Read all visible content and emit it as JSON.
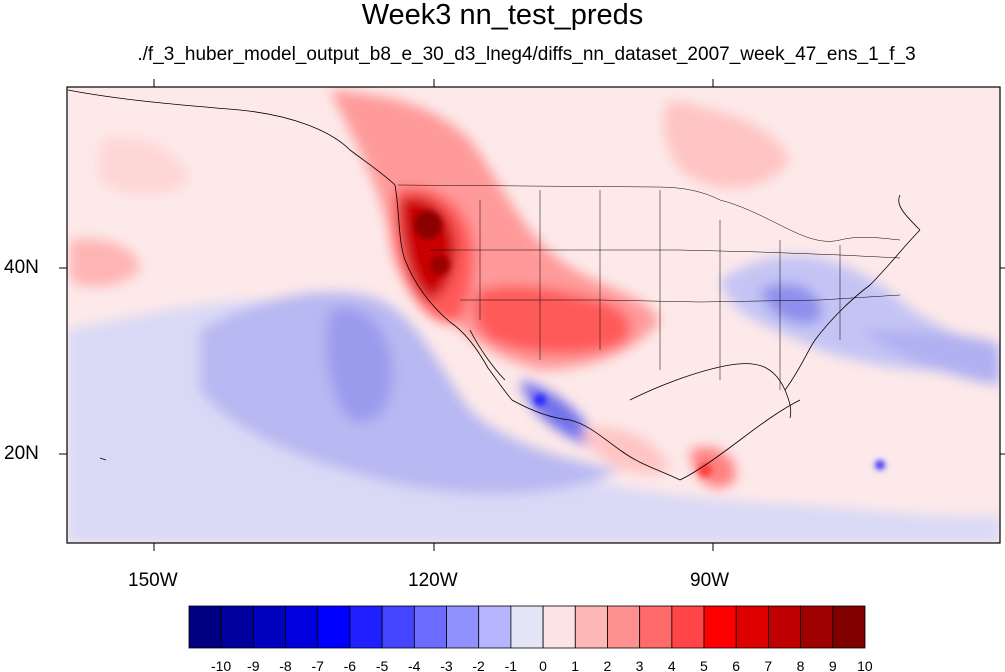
{
  "title": "Week3 nn_test_preds",
  "subtitle": "./f_3_huber_model_output_b8_e_30_d3_lneg4/diffs_nn_dataset_2007_week_47_ens_1_f_3",
  "map": {
    "lat_ticks": [
      "40N",
      "20N"
    ],
    "lon_ticks": [
      "150W",
      "120W",
      "90W"
    ]
  },
  "colorbar": {
    "labels": [
      "-10",
      "-9",
      "-8",
      "-7",
      "-6",
      "-5",
      "-4",
      "-3",
      "-2",
      "-1",
      "0",
      "1",
      "2",
      "3",
      "4",
      "5",
      "6",
      "7",
      "8",
      "9",
      "10"
    ],
    "colors": [
      "#000080",
      "#00009f",
      "#0000bf",
      "#0000df",
      "#0000ff",
      "#2020ff",
      "#4545ff",
      "#6b6bff",
      "#9090ff",
      "#b6b6ff",
      "#e5e5f8",
      "#fde4e4",
      "#ffb8b8",
      "#ff9090",
      "#ff6b6b",
      "#ff4545",
      "#ff0000",
      "#df0000",
      "#bf0000",
      "#9f0000",
      "#800000"
    ]
  }
}
